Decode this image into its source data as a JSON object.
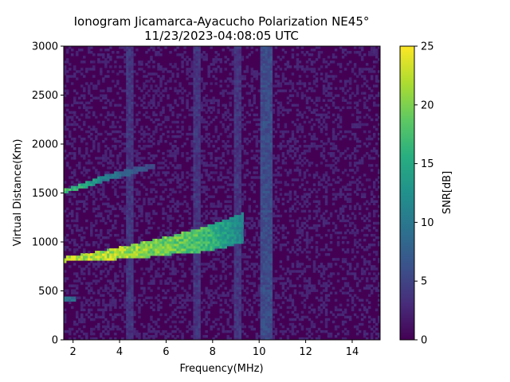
{
  "chart_data": {
    "type": "heatmap",
    "title": "Ionogram Jicamarca-Ayacucho Polarization NE45°",
    "subtitle": "11/23/2023-04:08:05 UTC",
    "xlabel": "Frequency(MHz)",
    "ylabel": "Virtual Distance(Km)",
    "colorbar_label": "SNR[dB]",
    "colormap": "viridis",
    "xlim": [
      1.6,
      15.2
    ],
    "ylim": [
      0,
      3000
    ],
    "clim": [
      0,
      25
    ],
    "x_ticks": [
      2,
      4,
      6,
      8,
      10,
      12,
      14
    ],
    "x_tick_labels": [
      "2",
      "4",
      "6",
      "8",
      "10",
      "12",
      "14"
    ],
    "y_ticks": [
      0,
      500,
      1000,
      1500,
      2000,
      2500,
      3000
    ],
    "y_tick_labels": [
      "0",
      "500",
      "1000",
      "1500",
      "2000",
      "2500",
      "3000"
    ],
    "colorbar_ticks": [
      0,
      5,
      10,
      15,
      20,
      25
    ],
    "colorbar_tick_labels": [
      "0",
      "5",
      "10",
      "15",
      "20",
      "25"
    ],
    "background_snr_db": 2,
    "traces": [
      {
        "name_hint": "F-layer trace",
        "points": [
          [
            1.6,
            820
          ],
          [
            3.0,
            860
          ],
          [
            4.5,
            900
          ],
          [
            6.0,
            960
          ],
          [
            7.5,
            1020
          ],
          [
            8.5,
            1080
          ],
          [
            9.3,
            1150
          ]
        ],
        "snr_db": [
          25,
          25,
          24,
          22,
          20,
          16,
          13
        ],
        "spread_km": [
          20,
          60,
          120,
          160,
          220,
          260,
          280
        ]
      },
      {
        "name_hint": "second-hop trace",
        "points": [
          [
            1.6,
            1520
          ],
          [
            2.5,
            1580
          ],
          [
            3.3,
            1650
          ],
          [
            4.5,
            1720
          ],
          [
            5.5,
            1780
          ]
        ],
        "snr_db": [
          20,
          18,
          12,
          8,
          6
        ],
        "spread_km": [
          20,
          30,
          40,
          40,
          30
        ]
      },
      {
        "name_hint": "low echo",
        "points": [
          [
            1.6,
            420
          ],
          [
            2.1,
            420
          ]
        ],
        "snr_db": [
          10,
          10
        ],
        "spread_km": [
          10,
          10
        ]
      }
    ],
    "interference_bands_mhz": [
      {
        "from": 4.3,
        "to": 4.6,
        "snr_db": 4
      },
      {
        "from": 7.2,
        "to": 7.5,
        "snr_db": 4
      },
      {
        "from": 8.9,
        "to": 9.2,
        "snr_db": 4
      },
      {
        "from": 10.0,
        "to": 10.6,
        "snr_db": 6
      }
    ]
  }
}
